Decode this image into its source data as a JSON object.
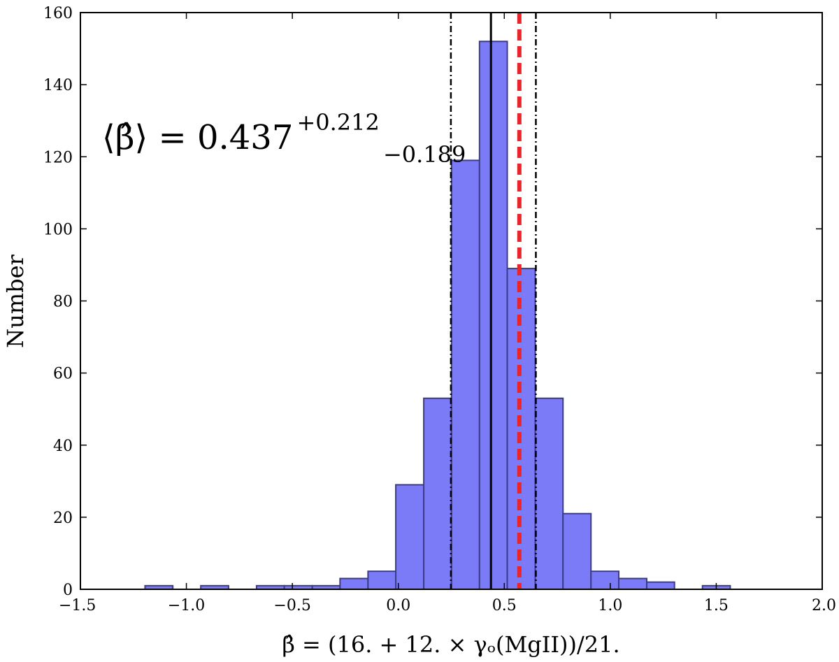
{
  "chart_data": {
    "type": "bar",
    "xlabel": "β̂ = (16. + 12. × γₒ(MgII))/21.",
    "ylabel": "Number",
    "xlim": [
      -1.5,
      2.0
    ],
    "ylim": [
      0,
      160
    ],
    "x_ticks": [
      -1.5,
      -1.0,
      -0.5,
      0.0,
      0.5,
      1.0,
      1.5,
      2.0
    ],
    "x_tick_labels": [
      "−1.5",
      "−1.0",
      "−0.5",
      "0.0",
      "0.5",
      "1.0",
      "1.5",
      "2.0"
    ],
    "y_ticks": [
      0,
      20,
      40,
      60,
      80,
      100,
      120,
      140,
      160
    ],
    "y_tick_labels": [
      "0",
      "20",
      "40",
      "60",
      "80",
      "100",
      "120",
      "140",
      "160"
    ],
    "bin_edges": [
      -1.195,
      -1.064,
      -0.932,
      -0.801,
      -0.669,
      -0.538,
      -0.406,
      -0.275,
      -0.143,
      -0.012,
      0.12,
      0.251,
      0.383,
      0.514,
      0.646,
      0.777,
      0.909,
      1.04,
      1.172,
      1.303,
      1.435,
      1.566
    ],
    "counts": [
      1,
      0,
      1,
      0,
      1,
      1,
      1,
      3,
      5,
      29,
      53,
      119,
      152,
      89,
      53,
      21,
      5,
      3,
      2,
      0,
      1
    ],
    "bar_color": "#7b7bf7",
    "bar_edge_color": "#3b3b8a",
    "annotation": {
      "prefix": "⟨β̂⟩ = 0.437",
      "sup": "+0.212",
      "sub": "−0.189"
    },
    "vertical_lines": [
      {
        "name": "median",
        "x": 0.437,
        "style": "solid",
        "color": "#000000"
      },
      {
        "name": "lower-bound",
        "x": 0.248,
        "style": "dashdot",
        "color": "#000000"
      },
      {
        "name": "upper-bound",
        "x": 0.649,
        "style": "dashdot",
        "color": "#000000"
      },
      {
        "name": "reference",
        "x": 0.571,
        "style": "dashed",
        "color": "#e8252b"
      }
    ]
  }
}
